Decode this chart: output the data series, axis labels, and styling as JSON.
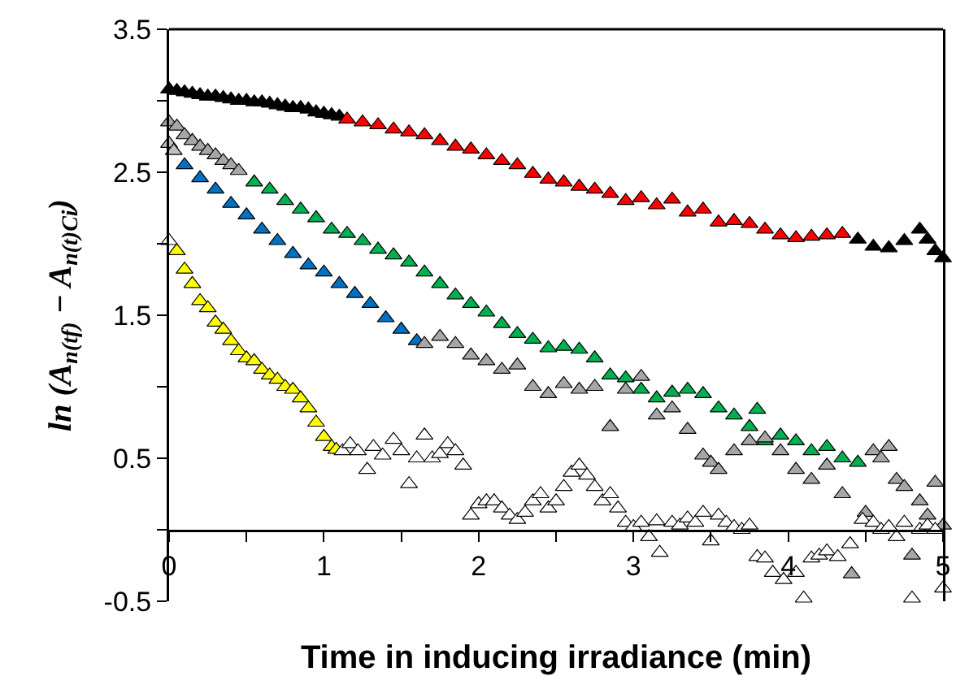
{
  "chart_data": {
    "type": "scatter",
    "xlabel": "Time in inducing irradiance (min)",
    "ylabel": "ln (A$_{n(tf)}$ − A$_{n(t)Ci}$)",
    "xlim": [
      0,
      5
    ],
    "xticks": [
      0,
      {
        "value": 0.5,
        "label": null
      },
      1,
      {
        "value": 1.5,
        "label": null
      },
      2,
      {
        "value": 2.5,
        "label": null
      },
      3,
      {
        "value": 3.5,
        "label": null
      },
      4,
      {
        "value": 4.5,
        "label": null
      },
      5
    ],
    "ylim": [
      -0.5,
      3.5
    ],
    "yticks": [
      -0.5,
      {
        "value": 0,
        "label": null
      },
      0.5,
      {
        "value": 1,
        "label": null
      },
      1.5,
      {
        "value": 2,
        "label": null
      },
      2.5,
      {
        "value": 3,
        "label": null
      },
      3.5
    ],
    "grid": false,
    "marker": "triangle",
    "series": [
      {
        "color": "#000000",
        "x": [
          0,
          0.05,
          0.1,
          0.15,
          0.2,
          0.25,
          0.3,
          0.35,
          0.4,
          0.45,
          0.5,
          0.55,
          0.6,
          0.65,
          0.7,
          0.75,
          0.8,
          0.85,
          0.9,
          0.95,
          1.0,
          1.05,
          1.1
        ],
        "values": [
          3.08,
          3.07,
          3.06,
          3.05,
          3.04,
          3.03,
          3.03,
          3.02,
          3.01,
          3.0,
          3.0,
          2.99,
          2.99,
          2.98,
          2.97,
          2.96,
          2.95,
          2.95,
          2.94,
          2.92,
          2.91,
          2.9,
          2.89
        ]
      },
      {
        "color": "#ff0000",
        "x": [
          1.15,
          1.25,
          1.35,
          1.45,
          1.55,
          1.65,
          1.75,
          1.85,
          1.95,
          2.05,
          2.15,
          2.25,
          2.35,
          2.45,
          2.55,
          2.65,
          2.75,
          2.85,
          2.95,
          3.05,
          3.15,
          3.25,
          3.35,
          3.45,
          3.55,
          3.65,
          3.75,
          3.85,
          3.95,
          4.05,
          4.15,
          4.25,
          4.35
        ],
        "values": [
          2.87,
          2.85,
          2.83,
          2.8,
          2.78,
          2.76,
          2.72,
          2.68,
          2.66,
          2.62,
          2.58,
          2.55,
          2.49,
          2.45,
          2.43,
          2.4,
          2.38,
          2.35,
          2.3,
          2.32,
          2.27,
          2.31,
          2.22,
          2.24,
          2.15,
          2.16,
          2.14,
          2.1,
          2.06,
          2.04,
          2.05,
          2.06,
          2.07
        ]
      },
      {
        "color": "#000000",
        "x": [
          4.45,
          4.55,
          4.65,
          4.75,
          4.85,
          4.9,
          4.95,
          5.0
        ],
        "values": [
          2.03,
          1.98,
          1.97,
          2.02,
          2.1,
          2.03,
          1.95,
          1.9
        ]
      },
      {
        "color": "#a6a6a6",
        "x": [
          0,
          0.05,
          0.1,
          0.15,
          0.2,
          0.25,
          0.3,
          0.35,
          0.4,
          0.45
        ],
        "values": [
          2.85,
          2.82,
          2.76,
          2.72,
          2.68,
          2.65,
          2.62,
          2.58,
          2.55,
          2.51
        ]
      },
      {
        "color": "#00b050",
        "x": [
          0.55,
          0.65,
          0.75,
          0.85,
          0.95,
          1.05,
          1.15,
          1.25,
          1.35,
          1.45,
          1.55,
          1.65,
          1.75,
          1.85,
          1.95,
          2.05,
          2.15,
          2.25,
          2.35,
          2.45,
          2.55,
          2.65,
          2.75,
          2.85,
          2.95,
          3.05,
          3.15,
          3.25,
          3.35,
          3.45,
          3.55,
          3.65,
          3.75,
          3.8,
          3.85,
          3.95,
          4.05,
          4.15,
          4.25,
          4.35,
          4.45
        ],
        "values": [
          2.43,
          2.38,
          2.3,
          2.24,
          2.18,
          2.1,
          2.07,
          2.02,
          1.96,
          1.92,
          1.87,
          1.8,
          1.72,
          1.64,
          1.58,
          1.52,
          1.44,
          1.37,
          1.33,
          1.27,
          1.28,
          1.26,
          1.2,
          1.08,
          1.06,
          0.98,
          0.92,
          0.96,
          0.98,
          0.95,
          0.85,
          0.8,
          0.72,
          0.84,
          0.62,
          0.66,
          0.62,
          0.55,
          0.58,
          0.5,
          0.47
        ]
      },
      {
        "color": "#c0c0c0",
        "x": [
          0,
          0.03
        ],
        "values": [
          2.7,
          2.65
        ]
      },
      {
        "color": "#0070c0",
        "x": [
          0.1,
          0.2,
          0.3,
          0.4,
          0.5,
          0.6,
          0.7,
          0.8,
          0.9,
          1.0,
          1.1,
          1.2,
          1.3,
          1.4,
          1.5,
          1.6
        ],
        "values": [
          2.55,
          2.46,
          2.38,
          2.28,
          2.2,
          2.1,
          2.02,
          1.93,
          1.85,
          1.8,
          1.72,
          1.65,
          1.58,
          1.48,
          1.4,
          1.32
        ]
      },
      {
        "color": "#a6a6a6",
        "x": [
          1.65,
          1.75,
          1.85,
          1.95,
          2.05,
          2.15,
          2.25,
          2.35,
          2.45,
          2.55,
          2.65,
          2.75,
          2.85,
          2.95,
          3.05,
          3.15,
          3.25,
          3.35,
          3.45,
          3.5,
          3.55,
          3.65,
          3.75,
          3.85,
          3.95,
          4.05,
          4.15,
          4.25,
          4.35,
          4.41,
          4.5,
          4.55,
          4.6,
          4.65,
          4.7,
          4.75,
          4.8,
          4.85,
          4.9,
          4.95,
          5.0
        ],
        "values": [
          1.3,
          1.35,
          1.3,
          1.22,
          1.18,
          1.12,
          1.15,
          1.0,
          0.95,
          1.02,
          0.98,
          1.0,
          0.72,
          0.98,
          1.07,
          0.8,
          0.85,
          0.7,
          0.52,
          0.47,
          0.42,
          0.55,
          0.62,
          0.64,
          0.55,
          0.42,
          0.35,
          0.45,
          0.25,
          -0.31,
          0.12,
          0.55,
          0.5,
          0.58,
          0.35,
          0.3,
          -0.18,
          0.2,
          0.1,
          0.33,
          0.03
        ]
      },
      {
        "color": "#ffffff",
        "x": [
          0
        ],
        "values": [
          2.02
        ]
      },
      {
        "color": "#ffff00",
        "x": [
          0.05,
          0.1,
          0.15,
          0.2,
          0.25,
          0.3,
          0.35,
          0.4,
          0.45,
          0.5,
          0.55,
          0.6,
          0.65,
          0.7,
          0.75,
          0.8,
          0.85,
          0.9,
          0.95,
          1.0,
          1.05,
          1.08
        ],
        "values": [
          1.95,
          1.82,
          1.72,
          1.6,
          1.55,
          1.45,
          1.4,
          1.32,
          1.25,
          1.2,
          1.18,
          1.12,
          1.08,
          1.05,
          1.0,
          0.98,
          0.92,
          0.85,
          0.75,
          0.65,
          0.58,
          0.56
        ]
      },
      {
        "color": "#ffffff",
        "x": [
          1.12,
          1.17,
          1.22,
          1.28,
          1.32,
          1.38,
          1.45,
          1.5,
          1.55,
          1.6,
          1.65,
          1.7,
          1.75,
          1.8,
          1.85,
          1.9,
          1.95,
          2.0,
          2.05,
          2.1,
          2.15,
          2.2,
          2.25,
          2.3,
          2.35,
          2.4,
          2.45,
          2.5,
          2.55,
          2.6,
          2.65,
          2.7,
          2.75,
          2.8,
          2.85,
          2.9,
          2.95,
          3.0,
          3.05,
          3.1,
          3.15,
          3.17,
          3.25,
          3.3,
          3.35,
          3.4,
          3.45,
          3.5,
          3.55,
          3.6,
          3.65,
          3.7,
          3.75,
          3.8,
          3.85,
          3.9,
          3.97,
          4.05,
          4.1,
          4.15,
          4.2,
          4.25,
          4.32,
          4.4,
          4.48,
          4.55,
          4.6,
          4.65,
          4.7,
          4.75,
          4.8,
          4.85,
          4.9,
          4.95,
          5.0
        ],
        "values": [
          0.55,
          0.6,
          0.55,
          0.42,
          0.58,
          0.52,
          0.63,
          0.55,
          0.32,
          0.5,
          0.66,
          0.5,
          0.53,
          0.6,
          0.55,
          0.45,
          0.1,
          0.18,
          0.2,
          0.2,
          0.15,
          0.1,
          0.07,
          0.12,
          0.2,
          0.25,
          0.15,
          0.2,
          0.3,
          0.4,
          0.45,
          0.38,
          0.3,
          0.2,
          0.25,
          0.15,
          0.05,
          0.02,
          0.05,
          -0.05,
          0.06,
          -0.16,
          0.05,
          0.03,
          0.08,
          0.05,
          0.12,
          -0.08,
          0.1,
          0.05,
          0.02,
          0.0,
          0.03,
          -0.19,
          -0.2,
          -0.3,
          -0.35,
          -0.3,
          -0.48,
          -0.2,
          -0.18,
          -0.15,
          -0.19,
          -0.1,
          0.07,
          0.05,
          0.0,
          0.02,
          -0.05,
          0.05,
          -0.48,
          0.0,
          0.03,
          0.0,
          -0.41
        ]
      }
    ]
  }
}
